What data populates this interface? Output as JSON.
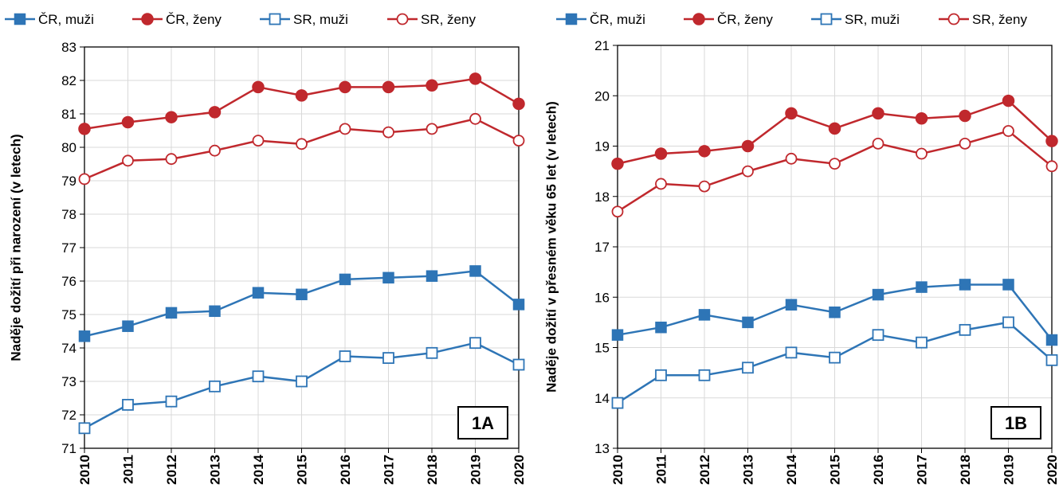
{
  "chart_data": [
    {
      "type": "line",
      "panel_label": "1A",
      "ylabel": "Naděje dožití při narození (v letech)",
      "xlabel": "",
      "categories": [
        "2010",
        "2011",
        "2012",
        "2013",
        "2014",
        "2015",
        "2016",
        "2017",
        "2018",
        "2019",
        "2020"
      ],
      "ylim": [
        71,
        83
      ],
      "ytick_step": 1,
      "grid": true,
      "legend_position": "top",
      "series": [
        {
          "name": "ČR, muži",
          "color": "#2e75b6",
          "marker": "filled-square",
          "values": [
            74.35,
            74.65,
            75.05,
            75.1,
            75.65,
            75.6,
            76.05,
            76.1,
            76.15,
            76.3,
            75.3
          ]
        },
        {
          "name": "ČR, ženy",
          "color": "#c0282d",
          "marker": "filled-circle",
          "values": [
            80.55,
            80.75,
            80.9,
            81.05,
            81.8,
            81.55,
            81.8,
            81.8,
            81.85,
            82.05,
            81.3
          ]
        },
        {
          "name": "SR, muži",
          "color": "#2e75b6",
          "marker": "open-square",
          "values": [
            71.6,
            72.3,
            72.4,
            72.85,
            73.15,
            73.0,
            73.75,
            73.7,
            73.85,
            74.15,
            73.5
          ]
        },
        {
          "name": "SR, ženy",
          "color": "#c0282d",
          "marker": "open-circle",
          "values": [
            79.05,
            79.6,
            79.65,
            79.9,
            80.2,
            80.1,
            80.55,
            80.45,
            80.55,
            80.85,
            80.2
          ]
        }
      ]
    },
    {
      "type": "line",
      "panel_label": "1B",
      "ylabel": "Naděje dožití v přesném věku 65 let (v letech)",
      "xlabel": "",
      "categories": [
        "2010",
        "2011",
        "2012",
        "2013",
        "2014",
        "2015",
        "2016",
        "2017",
        "2018",
        "2019",
        "2020"
      ],
      "ylim": [
        13,
        21
      ],
      "ytick_step": 1,
      "grid": true,
      "legend_position": "top",
      "series": [
        {
          "name": "ČR, muži",
          "color": "#2e75b6",
          "marker": "filled-square",
          "values": [
            15.25,
            15.4,
            15.65,
            15.5,
            15.85,
            15.7,
            16.05,
            16.2,
            16.25,
            16.25,
            15.15
          ]
        },
        {
          "name": "ČR, ženy",
          "color": "#c0282d",
          "marker": "filled-circle",
          "values": [
            18.65,
            18.85,
            18.9,
            19.0,
            19.65,
            19.35,
            19.65,
            19.55,
            19.6,
            19.9,
            19.1
          ]
        },
        {
          "name": "SR, muži",
          "color": "#2e75b6",
          "marker": "open-square",
          "values": [
            13.9,
            14.45,
            14.45,
            14.6,
            14.9,
            14.8,
            15.25,
            15.1,
            15.35,
            15.5,
            14.75
          ]
        },
        {
          "name": "SR, ženy",
          "color": "#c0282d",
          "marker": "open-circle",
          "values": [
            17.7,
            18.25,
            18.2,
            18.5,
            18.75,
            18.65,
            19.05,
            18.85,
            19.05,
            19.3,
            18.6
          ]
        }
      ]
    }
  ]
}
